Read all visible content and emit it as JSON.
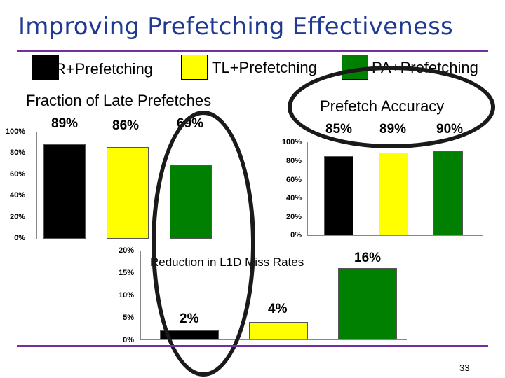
{
  "slide": {
    "title": "Improving Prefetching Effectiveness",
    "page_number": "33"
  },
  "legend": [
    {
      "label": "RR+Prefetching",
      "color": "#000000"
    },
    {
      "label": "TL+Prefetching",
      "color": "#ffff00"
    },
    {
      "label": "PA+Prefetching",
      "color": "#008000"
    }
  ],
  "chart_data": [
    {
      "type": "bar",
      "title": "Fraction of Late Prefetches",
      "categories": [
        "RR+Prefetching",
        "TL+Prefetching",
        "PA+Prefetching"
      ],
      "values": [
        89,
        86,
        69
      ],
      "value_labels": [
        "89%",
        "86%",
        "69%"
      ],
      "y_ticks": [
        "100%",
        "80%",
        "60%",
        "40%",
        "20%",
        "0%"
      ],
      "ylim": [
        0,
        100
      ]
    },
    {
      "type": "bar",
      "title": "Prefetch Accuracy",
      "categories": [
        "RR+Prefetching",
        "TL+Prefetching",
        "PA+Prefetching"
      ],
      "values": [
        85,
        89,
        90
      ],
      "value_labels": [
        "85%",
        "89%",
        "90%"
      ],
      "y_ticks": [
        "100%",
        "80%",
        "60%",
        "40%",
        "20%",
        "0%"
      ],
      "ylim": [
        0,
        100
      ]
    },
    {
      "type": "bar",
      "title": "Reduction in L1D Miss Rates",
      "categories": [
        "RR+Prefetching",
        "TL+Prefetching",
        "PA+Prefetching"
      ],
      "values": [
        2,
        4,
        16
      ],
      "value_labels": [
        "2%",
        "4%",
        "16%"
      ],
      "y_ticks": [
        "20%",
        "15%",
        "10%",
        "5%",
        "0%"
      ],
      "ylim": [
        0,
        20
      ]
    }
  ]
}
